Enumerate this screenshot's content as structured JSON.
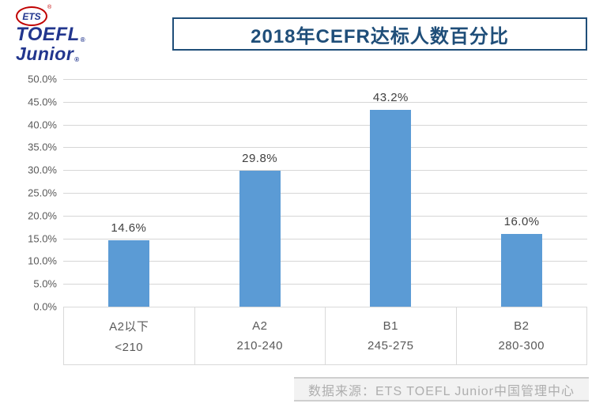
{
  "logo": {
    "ets": "ETS",
    "toefl": "TOEFL",
    "junior": "Junior",
    "registered": "®"
  },
  "chart_data": {
    "type": "bar",
    "title": "2018年CEFR达标人数百分比",
    "categories": [
      "A2以下",
      "A2",
      "B1",
      "B2"
    ],
    "score_ranges": [
      "<210",
      "210-240",
      "245-275",
      "280-300"
    ],
    "values": [
      14.6,
      29.8,
      43.2,
      16.0
    ],
    "value_labels": [
      "14.6%",
      "29.8%",
      "43.2%",
      "16.0%"
    ],
    "ylim": [
      0,
      50
    ],
    "ytick_labels": [
      "0.0%",
      "5.0%",
      "10.0%",
      "15.0%",
      "20.0%",
      "25.0%",
      "30.0%",
      "35.0%",
      "40.0%",
      "45.0%",
      "50.0%"
    ],
    "grid": true,
    "legend": "none",
    "bar_color": "#5b9bd5"
  },
  "footer": {
    "source": "数据来源：ETS TOEFL Junior中国管理中心"
  },
  "colors": {
    "title": "#1f4e79",
    "logo_blue": "#22368e",
    "logo_red": "#c00000",
    "axis_text": "#595959",
    "gridline": "#d6d6d6"
  }
}
